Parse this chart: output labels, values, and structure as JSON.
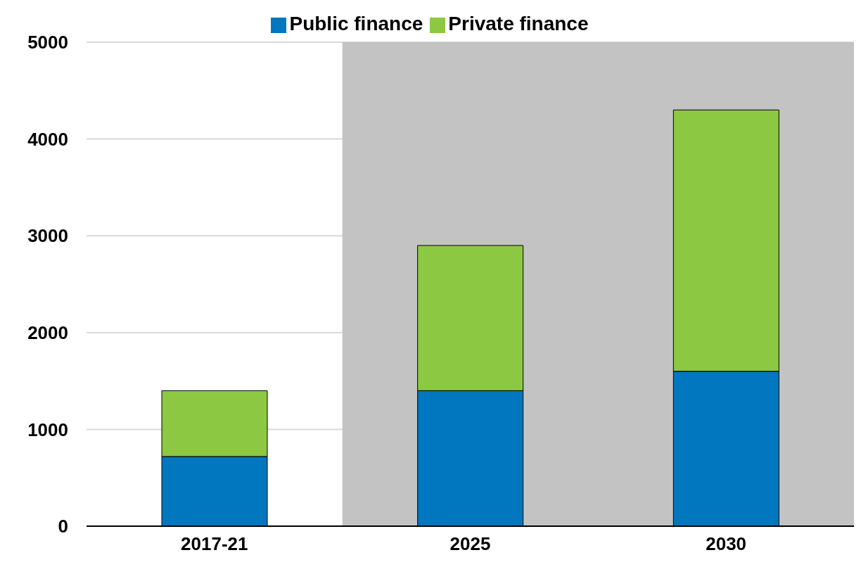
{
  "chart_data": {
    "type": "bar",
    "stacked": true,
    "categories": [
      "2017-21",
      "2025",
      "2030"
    ],
    "series": [
      {
        "name": "Public finance",
        "color": "#0077bf",
        "values": [
          720,
          1400,
          1600
        ]
      },
      {
        "name": "Private finance",
        "color": "#8cc841",
        "values": [
          680,
          1500,
          2700
        ]
      }
    ],
    "ylim": [
      0,
      5000
    ],
    "yticks": [
      0,
      1000,
      2000,
      3000,
      4000,
      5000
    ],
    "grid": "y",
    "legend": "top",
    "bands": [
      {
        "axis": "x",
        "from": "2025",
        "to": "2030",
        "color": "#c3c3c3"
      }
    ]
  }
}
